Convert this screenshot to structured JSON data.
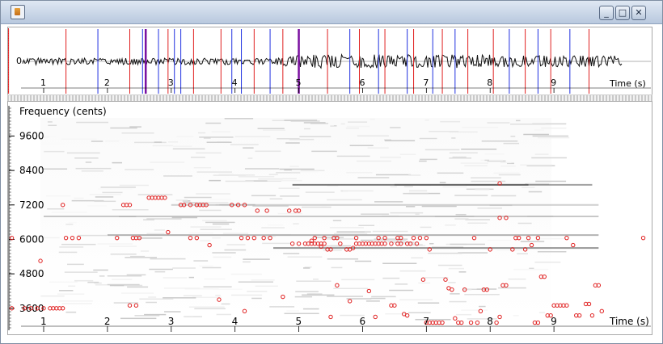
{
  "window": {
    "title": "",
    "buttons": {
      "minimize": "_",
      "maximize": "□",
      "close": "✕"
    }
  },
  "waveform_panel": {
    "axis_label": "Time (s)",
    "amplitude_label": "0",
    "time_ticks": [
      "1",
      "2",
      "3",
      "4",
      "5",
      "6",
      "7",
      "8",
      "9"
    ],
    "markers_red": [
      0.45,
      1.35,
      2.35,
      2.95,
      3.35,
      3.78,
      4.3,
      4.75,
      5.45,
      5.95,
      6.35,
      6.8,
      7.25,
      7.65,
      8.05,
      8.55,
      8.95,
      9.55
    ],
    "markers_blue": [
      1.85,
      2.55,
      2.8,
      3.05,
      3.15,
      3.95,
      4.1,
      4.55,
      5.8,
      6.25,
      6.7,
      7.1,
      7.45,
      8.3,
      8.75,
      9.25
    ],
    "markers_purple": [
      2.6,
      5.0
    ],
    "colors": {
      "red": "#e02020",
      "blue": "#2030e0",
      "purple": "#7a10a0"
    }
  },
  "spectrogram_panel": {
    "axis_label": "Frequency (cents)",
    "x_label": "Time (s)",
    "y_ticks": [
      "9600",
      "8400",
      "7200",
      "6000",
      "4800",
      "3600"
    ],
    "time_ticks": [
      "1",
      "2",
      "3",
      "4",
      "5",
      "6",
      "7",
      "8",
      "9"
    ],
    "point_color": "#e02020"
  },
  "chart_data": {
    "type": "scatter",
    "title": "",
    "xlabel": "Time (s)",
    "ylabel": "Frequency (cents)",
    "xlim": [
      0.5,
      10.5
    ],
    "ylim": [
      3200,
      10400
    ],
    "series": [
      {
        "points": [
          [
            0.5,
            3600
          ],
          [
            0.7,
            3600
          ],
          [
            0.8,
            3600
          ],
          [
            0.9,
            3600
          ],
          [
            1.0,
            3600
          ],
          [
            1.1,
            3600
          ],
          [
            1.15,
            3600
          ],
          [
            1.2,
            3600
          ],
          [
            1.25,
            3600
          ],
          [
            1.3,
            3600
          ],
          [
            0.5,
            6050
          ],
          [
            0.95,
            5250
          ],
          [
            1.3,
            7200
          ],
          [
            1.35,
            6050
          ],
          [
            1.45,
            6050
          ],
          [
            1.55,
            6050
          ],
          [
            2.15,
            6050
          ],
          [
            2.25,
            7200
          ],
          [
            2.3,
            7200
          ],
          [
            2.35,
            7200
          ],
          [
            2.4,
            6050
          ],
          [
            2.45,
            6050
          ],
          [
            2.5,
            6050
          ],
          [
            2.35,
            3700
          ],
          [
            2.45,
            3700
          ],
          [
            2.65,
            7450
          ],
          [
            2.7,
            7450
          ],
          [
            2.75,
            7450
          ],
          [
            2.8,
            7450
          ],
          [
            2.85,
            7450
          ],
          [
            2.9,
            7450
          ],
          [
            2.95,
            6250
          ],
          [
            3.15,
            7200
          ],
          [
            3.2,
            7200
          ],
          [
            3.3,
            7200
          ],
          [
            3.4,
            7200
          ],
          [
            3.45,
            7200
          ],
          [
            3.5,
            7200
          ],
          [
            3.55,
            7200
          ],
          [
            3.3,
            6050
          ],
          [
            3.4,
            6050
          ],
          [
            3.6,
            5800
          ],
          [
            3.75,
            3900
          ],
          [
            3.95,
            7200
          ],
          [
            4.05,
            7200
          ],
          [
            4.15,
            7200
          ],
          [
            4.1,
            6050
          ],
          [
            4.2,
            6050
          ],
          [
            4.3,
            6050
          ],
          [
            4.45,
            6050
          ],
          [
            4.15,
            3500
          ],
          [
            4.35,
            7000
          ],
          [
            4.5,
            7000
          ],
          [
            4.55,
            6050
          ],
          [
            4.75,
            4000
          ],
          [
            4.85,
            7000
          ],
          [
            4.95,
            7000
          ],
          [
            5.0,
            7000
          ],
          [
            4.9,
            5850
          ],
          [
            5.0,
            5850
          ],
          [
            5.1,
            5850
          ],
          [
            5.15,
            5850
          ],
          [
            5.2,
            5850
          ],
          [
            5.25,
            5850
          ],
          [
            5.3,
            5850
          ],
          [
            5.35,
            5850
          ],
          [
            5.4,
            5850
          ],
          [
            5.2,
            5950
          ],
          [
            5.25,
            6050
          ],
          [
            5.35,
            5750
          ],
          [
            5.4,
            6050
          ],
          [
            5.45,
            5650
          ],
          [
            5.5,
            5650
          ],
          [
            5.55,
            6050
          ],
          [
            5.6,
            6050
          ],
          [
            5.65,
            5850
          ],
          [
            5.75,
            5650
          ],
          [
            5.8,
            5650
          ],
          [
            5.85,
            5700
          ],
          [
            5.9,
            5850
          ],
          [
            5.95,
            5850
          ],
          [
            6.0,
            5850
          ],
          [
            6.05,
            5850
          ],
          [
            6.1,
            5850
          ],
          [
            6.15,
            5850
          ],
          [
            6.2,
            5850
          ],
          [
            6.25,
            5850
          ],
          [
            6.3,
            5850
          ],
          [
            6.35,
            5850
          ],
          [
            6.45,
            5850
          ],
          [
            6.55,
            5850
          ],
          [
            6.6,
            5850
          ],
          [
            6.7,
            5850
          ],
          [
            6.75,
            5850
          ],
          [
            6.85,
            5850
          ],
          [
            5.8,
            3850
          ],
          [
            5.9,
            6050
          ],
          [
            6.1,
            4200
          ],
          [
            6.2,
            3300
          ],
          [
            6.25,
            6050
          ],
          [
            6.35,
            6050
          ],
          [
            6.45,
            3700
          ],
          [
            6.5,
            3700
          ],
          [
            6.55,
            6050
          ],
          [
            6.6,
            6050
          ],
          [
            5.5,
            3300
          ],
          [
            5.6,
            4400
          ],
          [
            6.65,
            3400
          ],
          [
            6.7,
            3350
          ],
          [
            6.8,
            6050
          ],
          [
            6.9,
            6050
          ],
          [
            6.95,
            4600
          ],
          [
            7.0,
            6050
          ],
          [
            7.05,
            5650
          ],
          [
            7.0,
            3100
          ],
          [
            7.05,
            3100
          ],
          [
            7.1,
            3100
          ],
          [
            7.15,
            3100
          ],
          [
            7.2,
            3100
          ],
          [
            7.25,
            3100
          ],
          [
            7.3,
            4600
          ],
          [
            7.35,
            4300
          ],
          [
            7.4,
            4250
          ],
          [
            7.45,
            3250
          ],
          [
            7.5,
            3100
          ],
          [
            7.55,
            3100
          ],
          [
            7.6,
            4250
          ],
          [
            7.7,
            3100
          ],
          [
            7.75,
            6050
          ],
          [
            7.8,
            3100
          ],
          [
            7.85,
            3500
          ],
          [
            7.9,
            4250
          ],
          [
            7.95,
            4250
          ],
          [
            8.0,
            5650
          ],
          [
            8.1,
            3100
          ],
          [
            8.15,
            3300
          ],
          [
            8.2,
            4400
          ],
          [
            8.25,
            4400
          ],
          [
            8.35,
            5650
          ],
          [
            8.4,
            6050
          ],
          [
            8.45,
            6050
          ],
          [
            8.55,
            5650
          ],
          [
            8.65,
            5800
          ],
          [
            8.6,
            6050
          ],
          [
            8.7,
            3100
          ],
          [
            8.75,
            3100
          ],
          [
            8.75,
            6050
          ],
          [
            8.8,
            4700
          ],
          [
            8.85,
            4700
          ],
          [
            8.9,
            3350
          ],
          [
            8.95,
            3350
          ],
          [
            9.0,
            3700
          ],
          [
            9.05,
            3700
          ],
          [
            9.1,
            3700
          ],
          [
            9.15,
            3700
          ],
          [
            9.2,
            3700
          ],
          [
            9.2,
            6050
          ],
          [
            9.3,
            5800
          ],
          [
            9.35,
            3350
          ],
          [
            9.4,
            3350
          ],
          [
            9.5,
            3750
          ],
          [
            9.55,
            3750
          ],
          [
            9.6,
            3350
          ],
          [
            9.65,
            4400
          ],
          [
            9.7,
            4400
          ],
          [
            9.75,
            3500
          ],
          [
            8.15,
            7950
          ],
          [
            8.15,
            6750
          ],
          [
            8.25,
            6750
          ],
          [
            10.4,
            6050
          ]
        ]
      }
    ]
  }
}
